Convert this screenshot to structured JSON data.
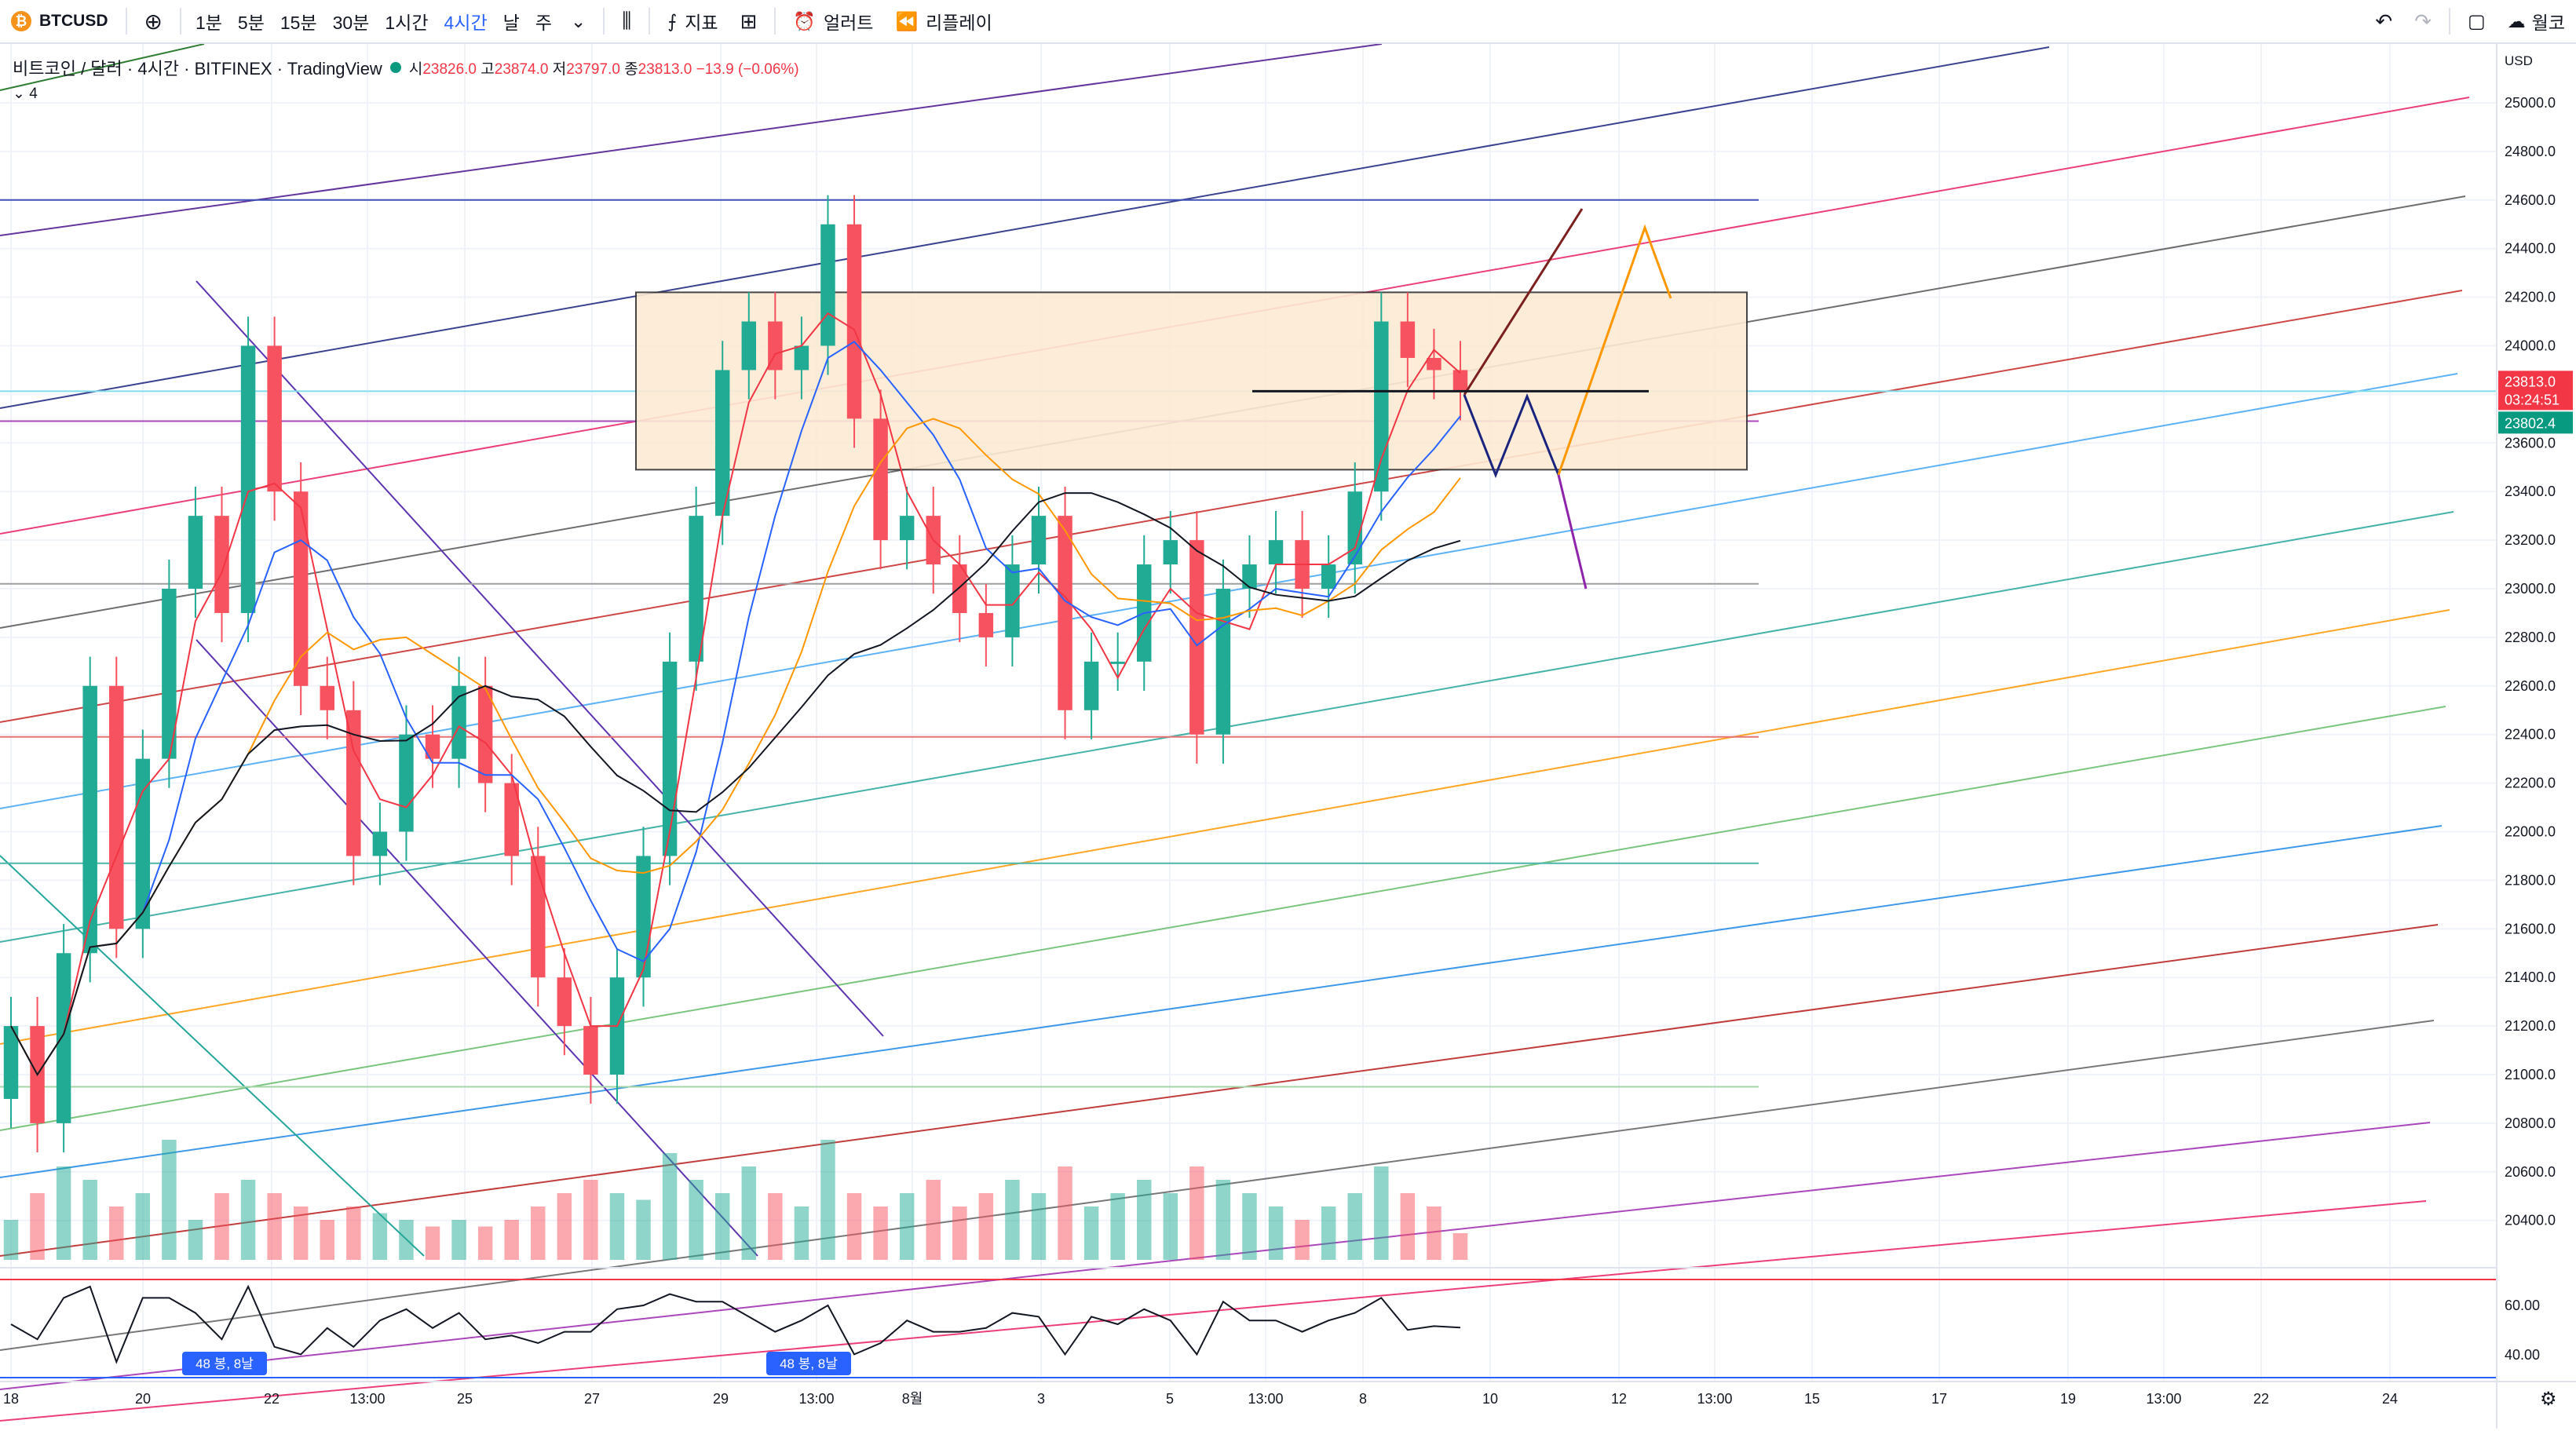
{
  "toolbar": {
    "symbol": "BTCUSD",
    "timeframes": [
      "1분",
      "5분",
      "15분",
      "30분",
      "1시간",
      "4시간",
      "날",
      "주"
    ],
    "active_timeframe": "4시간",
    "indicators_label": "지표",
    "alerts_label": "얼러트",
    "replay_label": "리플레이",
    "right_label": "월코"
  },
  "legend": {
    "title": "비트코인 / 달러 · 4시간 · BITFINEX · TradingView",
    "open_label": "시",
    "open": "23826.0",
    "high_label": "고",
    "high": "23874.0",
    "low_label": "저",
    "low": "23797.0",
    "close_label": "종",
    "close": "23813.0",
    "change": "−13.9 (−0.06%)",
    "indicator_count": "4"
  },
  "price_axis": {
    "currency": "USD",
    "ticks": [
      "25000.0",
      "24800.0",
      "24600.0",
      "24400.0",
      "24200.0",
      "24000.0",
      "23800.0",
      "23600.0",
      "23400.0",
      "23200.0",
      "23000.0",
      "22800.0",
      "22600.0",
      "22400.0",
      "22200.0",
      "22000.0",
      "21800.0",
      "21600.0",
      "21400.0",
      "21200.0",
      "21000.0",
      "20800.0",
      "20600.0",
      "20400.0"
    ],
    "last_price": "23813.0",
    "countdown": "03:24:51",
    "second_price": "23802.4"
  },
  "rsi_axis": {
    "ticks": [
      "60.00",
      "40.00"
    ]
  },
  "time_axis": {
    "labels": [
      "18",
      "20",
      "22",
      "13:00",
      "25",
      "27",
      "29",
      "13:00",
      "8월",
      "3",
      "5",
      "13:00",
      "8",
      "10",
      "12",
      "13:00",
      "15",
      "17",
      "19",
      "13:00",
      "22",
      "24"
    ]
  },
  "badges": [
    "48 봉, 8날",
    "48 봉, 8날"
  ],
  "colors": {
    "up": "#22ab94",
    "down": "#f7525f",
    "accent": "#2962ff",
    "box_fill": "#fdebd3",
    "box_border": "#333333"
  },
  "chart_data": {
    "type": "candlestick",
    "symbol": "BTCUSD",
    "exchange": "BITFINEX",
    "interval": "4시간",
    "ylim": [
      20200,
      25200
    ],
    "y_ticks": [
      25000,
      24800,
      24600,
      24400,
      24200,
      24000,
      23800,
      23600,
      23400,
      23200,
      23000,
      22800,
      22600,
      22400,
      22200,
      22000,
      21800,
      21600,
      21400,
      21200,
      21000,
      20800,
      20600,
      20400
    ],
    "last": {
      "open": 23826.0,
      "high": 23874.0,
      "low": 23797.0,
      "close": 23813.0,
      "change": -13.9,
      "change_pct": -0.06
    },
    "closes": [
      21200,
      20800,
      21500,
      22600,
      21600,
      22300,
      23000,
      23300,
      22900,
      24000,
      23400,
      22600,
      22500,
      21900,
      22000,
      22400,
      22300,
      22600,
      22200,
      21900,
      21400,
      21200,
      21000,
      21400,
      21900,
      22700,
      23300,
      23900,
      24100,
      23900,
      24000,
      24500,
      23700,
      23200,
      23300,
      23100,
      22900,
      22800,
      23100,
      23300,
      22500,
      22700,
      22700,
      23100,
      23200,
      22400,
      23000,
      23100,
      23200,
      23000,
      23100,
      23400,
      24100,
      23950,
      23900,
      23813
    ],
    "volume_relative": [
      0.3,
      0.5,
      0.7,
      0.6,
      0.4,
      0.5,
      0.9,
      0.3,
      0.5,
      0.6,
      0.5,
      0.4,
      0.3,
      0.4,
      0.35,
      0.3,
      0.25,
      0.3,
      0.25,
      0.3,
      0.4,
      0.5,
      0.6,
      0.5,
      0.45,
      0.8,
      0.6,
      0.5,
      0.7,
      0.5,
      0.4,
      0.9,
      0.5,
      0.4,
      0.5,
      0.6,
      0.4,
      0.5,
      0.6,
      0.5,
      0.7,
      0.4,
      0.5,
      0.6,
      0.5,
      0.7,
      0.6,
      0.5,
      0.4,
      0.3,
      0.4,
      0.5,
      0.7,
      0.5,
      0.4,
      0.2
    ],
    "horizontal_levels": [
      24600,
      23813,
      23690,
      23020,
      22390,
      21870,
      20950
    ],
    "range_box": {
      "top": 24220,
      "bottom": 23490
    },
    "moving_averages": [
      "red",
      "blue",
      "orange",
      "black"
    ],
    "rsi_levels": [
      70,
      30
    ]
  }
}
